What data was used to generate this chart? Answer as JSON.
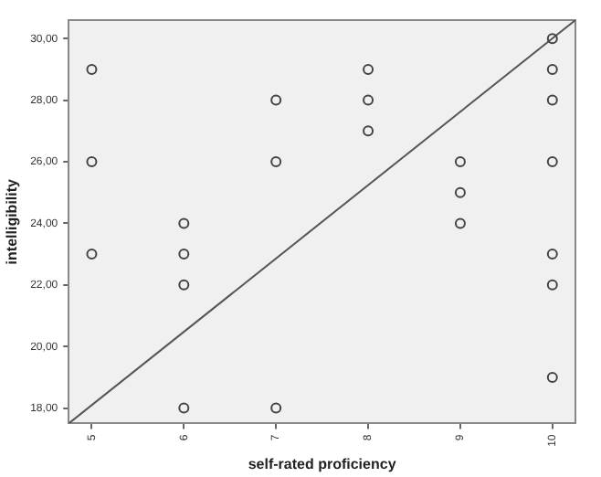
{
  "chart_data": {
    "type": "scatter",
    "xlabel": "self-rated proficiency",
    "ylabel": "intelligibility",
    "xlim": [
      4.75,
      10.25
    ],
    "ylim": [
      17.5,
      30.6
    ],
    "xticks": [
      5,
      6,
      7,
      8,
      9,
      10
    ],
    "yticks": [
      {
        "value": 18,
        "label": "18,00"
      },
      {
        "value": 20,
        "label": "20,00"
      },
      {
        "value": 22,
        "label": "22,00"
      },
      {
        "value": 24,
        "label": "24,00"
      },
      {
        "value": 26,
        "label": "26,00"
      },
      {
        "value": 28,
        "label": "28,00"
      },
      {
        "value": 30,
        "label": "30,00"
      }
    ],
    "grid": false,
    "marker": "circle",
    "series": [
      {
        "type": "scatter",
        "color": "#444444",
        "x": [
          5,
          5,
          5,
          6,
          6,
          6,
          6,
          7,
          7,
          7,
          8,
          8,
          8,
          9,
          9,
          9,
          10,
          10,
          10,
          10,
          10,
          10,
          10
        ],
        "values": [
          29,
          26,
          23,
          24,
          23,
          22,
          18,
          28,
          26,
          18,
          29,
          28,
          27,
          26,
          25,
          24,
          30,
          29,
          28,
          26,
          23,
          22,
          19
        ]
      },
      {
        "type": "line",
        "color": "#555555",
        "x": [
          4.75,
          10.25
        ],
        "values": [
          17.5,
          30.6
        ],
        "marker": "none",
        "line_style": "solid"
      }
    ]
  }
}
